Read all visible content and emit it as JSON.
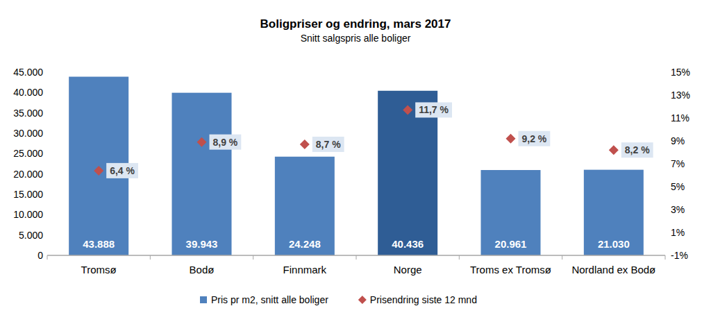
{
  "chart_data": {
    "type": "bar",
    "title": "Boligpriser og endring, mars 2017",
    "subtitle": "Snitt salgspris alle boliger",
    "categories": [
      "Tromsø",
      "Bodø",
      "Finnmark",
      "Norge",
      "Troms ex Tromsø",
      "Nordland ex Bodø"
    ],
    "series": [
      {
        "name": "Pris pr m2, snitt alle boliger",
        "type": "bar",
        "colors": [
          "#4f81bd",
          "#4f81bd",
          "#4f81bd",
          "#2f5d95",
          "#4f81bd",
          "#4f81bd"
        ],
        "values": [
          43888,
          39943,
          24248,
          40436,
          20961,
          21030
        ],
        "value_labels": [
          "43.888",
          "39.943",
          "24.248",
          "40.436",
          "20.961",
          "21.030"
        ],
        "data_labels": true
      },
      {
        "name": "Prisendring siste 12 mnd",
        "type": "scatter",
        "marker": "diamond",
        "color": "#c0504d",
        "axis": "y2",
        "values": [
          6.4,
          8.9,
          8.7,
          11.7,
          9.2,
          8.2
        ],
        "value_labels": [
          "6,4 %",
          "8,9 %",
          "8,7 %",
          "11,7 %",
          "9,2 %",
          "8,2 %"
        ],
        "data_labels": true
      }
    ],
    "ylim": [
      0,
      45000
    ],
    "yticks": [
      0,
      {
        "value": 5000,
        "label": "5.000"
      },
      {
        "value": 10000,
        "label": "10.000"
      },
      {
        "value": 15000,
        "label": "15.000"
      },
      {
        "value": 20000,
        "label": "20.000"
      },
      {
        "value": 25000,
        "label": "25.000"
      },
      {
        "value": 30000,
        "label": "30.000"
      },
      {
        "value": 35000,
        "label": "35.000"
      },
      {
        "value": 40000,
        "label": "40.000"
      },
      {
        "value": 45000,
        "label": "45.000"
      }
    ],
    "y2lim": [
      -1,
      15
    ],
    "y2ticks": [
      {
        "value": -1,
        "label": "-1%"
      },
      {
        "value": 1,
        "label": "1%"
      },
      {
        "value": 3,
        "label": "3%"
      },
      {
        "value": 5,
        "label": "5%"
      },
      {
        "value": 7,
        "label": "7%"
      },
      {
        "value": 9,
        "label": "9%"
      },
      {
        "value": 11,
        "label": "11%"
      },
      {
        "value": 13,
        "label": "13%"
      },
      {
        "value": 15,
        "label": "15%"
      }
    ],
    "grid": false,
    "legend": "bottom"
  }
}
